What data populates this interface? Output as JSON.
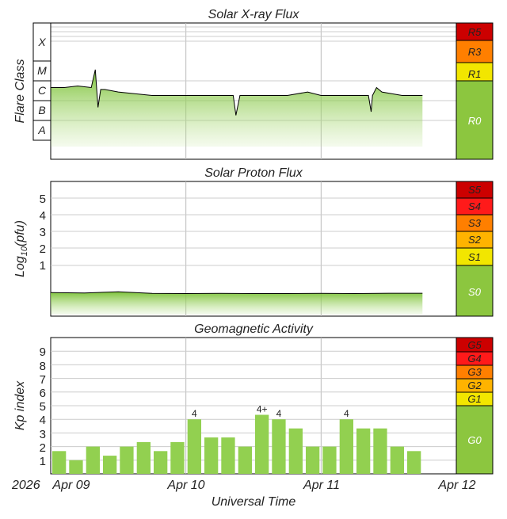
{
  "panels": {
    "xray": {
      "title": "Solar X-ray Flux",
      "ylabel": "Flare Class",
      "class_labels": [
        "X",
        "M",
        "C",
        "B",
        "A"
      ],
      "scale_labels": [
        "R5",
        "R3",
        "R1",
        "R0"
      ]
    },
    "proton": {
      "title": "Solar Proton Flux",
      "ylabel_main": "Log",
      "ylabel_sub": "10",
      "ylabel_tail": "(pfu)",
      "tick_labels": [
        "5",
        "4",
        "3",
        "2",
        "1"
      ],
      "scale_labels": [
        "S5",
        "S4",
        "S3",
        "S2",
        "S1",
        "S0"
      ]
    },
    "geomag": {
      "title": "Geomagnetic Activity",
      "ylabel": "Kp index",
      "tick_labels": [
        "9",
        "8",
        "7",
        "6",
        "5",
        "4",
        "3",
        "2",
        "1"
      ],
      "scale_labels": [
        "G5",
        "G4",
        "G3",
        "G2",
        "G1",
        "G0"
      ]
    }
  },
  "xaxis": {
    "label": "Universal Time",
    "year": "2026",
    "ticks": [
      "Apr 09",
      "Apr 10",
      "Apr 11",
      "Apr 12"
    ]
  },
  "colors": {
    "quiet": "#8cc63f",
    "level_yellow": "#f2e600",
    "level_amber": "#ffb300",
    "level_orange": "#ff7f00",
    "level_red": "#ff1a1a",
    "level_darkred": "#cc0000",
    "bar": "#92d050",
    "line": "#000000"
  },
  "chart_data": [
    {
      "type": "area",
      "title": "Solar X-ray Flux",
      "ylabel": "Flare Class",
      "y_scale": "log",
      "y_categories": [
        "A",
        "B",
        "C",
        "M",
        "X"
      ],
      "x_range": [
        "2026-04-09",
        "2026-04-12"
      ],
      "series": [
        {
          "x_days": [
            0.0,
            0.1,
            0.2,
            0.3,
            0.33,
            0.35,
            0.37,
            0.4,
            0.5,
            0.75,
            1.0,
            1.25,
            1.35,
            1.37,
            1.4,
            1.5,
            1.75,
            1.9,
            2.0,
            2.2,
            2.35,
            2.37,
            2.38,
            2.41,
            2.45,
            2.6,
            2.75
          ],
          "y": [
            "B5",
            "B5",
            "B6",
            "B5",
            "C4",
            "A5",
            "B4",
            "B4",
            "B3",
            "B2",
            "B2",
            "B2",
            "B2",
            "A2",
            "B2",
            "B2",
            "B2",
            "B3",
            "B2",
            "B2",
            "B2",
            "A3",
            "B2",
            "B5",
            "B3",
            "B2",
            "B2"
          ]
        }
      ],
      "scale_levels": [
        "R0",
        "R1",
        "R3",
        "R5"
      ]
    },
    {
      "type": "area",
      "title": "Solar Proton Flux",
      "ylabel": "Log10(pfu)",
      "ylim": [
        -2,
        6
      ],
      "x_range": [
        "2026-04-09",
        "2026-04-12"
      ],
      "series": [
        {
          "x_days": [
            0.0,
            0.25,
            0.5,
            0.75,
            1.0,
            1.25,
            1.5,
            1.75,
            2.0,
            2.25,
            2.5,
            2.75
          ],
          "y": [
            -0.6,
            -0.62,
            -0.55,
            -0.65,
            -0.66,
            -0.65,
            -0.66,
            -0.66,
            -0.65,
            -0.66,
            -0.64,
            -0.64
          ]
        }
      ],
      "scale_levels": [
        "S0",
        "S1",
        "S2",
        "S3",
        "S4",
        "S5"
      ]
    },
    {
      "type": "bar",
      "title": "Geomagnetic Activity",
      "ylabel": "Kp index",
      "ylim": [
        0,
        10
      ],
      "x_range": [
        "2026-04-09",
        "2026-04-12"
      ],
      "bin_hours": 3,
      "values": [
        1.67,
        1.0,
        2.0,
        1.33,
        2.0,
        2.33,
        1.67,
        2.33,
        4.0,
        2.67,
        2.67,
        2.0,
        4.33,
        4.0,
        3.33,
        2.0,
        2.0,
        4.0,
        3.33,
        3.33,
        2.0,
        1.67
      ],
      "value_labels": [
        "",
        "",
        "",
        "",
        "",
        "",
        "",
        "",
        "4",
        "",
        "",
        "",
        "4+",
        "4",
        "",
        "",
        "",
        "4",
        "",
        "",
        "",
        ""
      ],
      "scale_levels": [
        "G0",
        "G1",
        "G2",
        "G3",
        "G4",
        "G5"
      ]
    }
  ]
}
